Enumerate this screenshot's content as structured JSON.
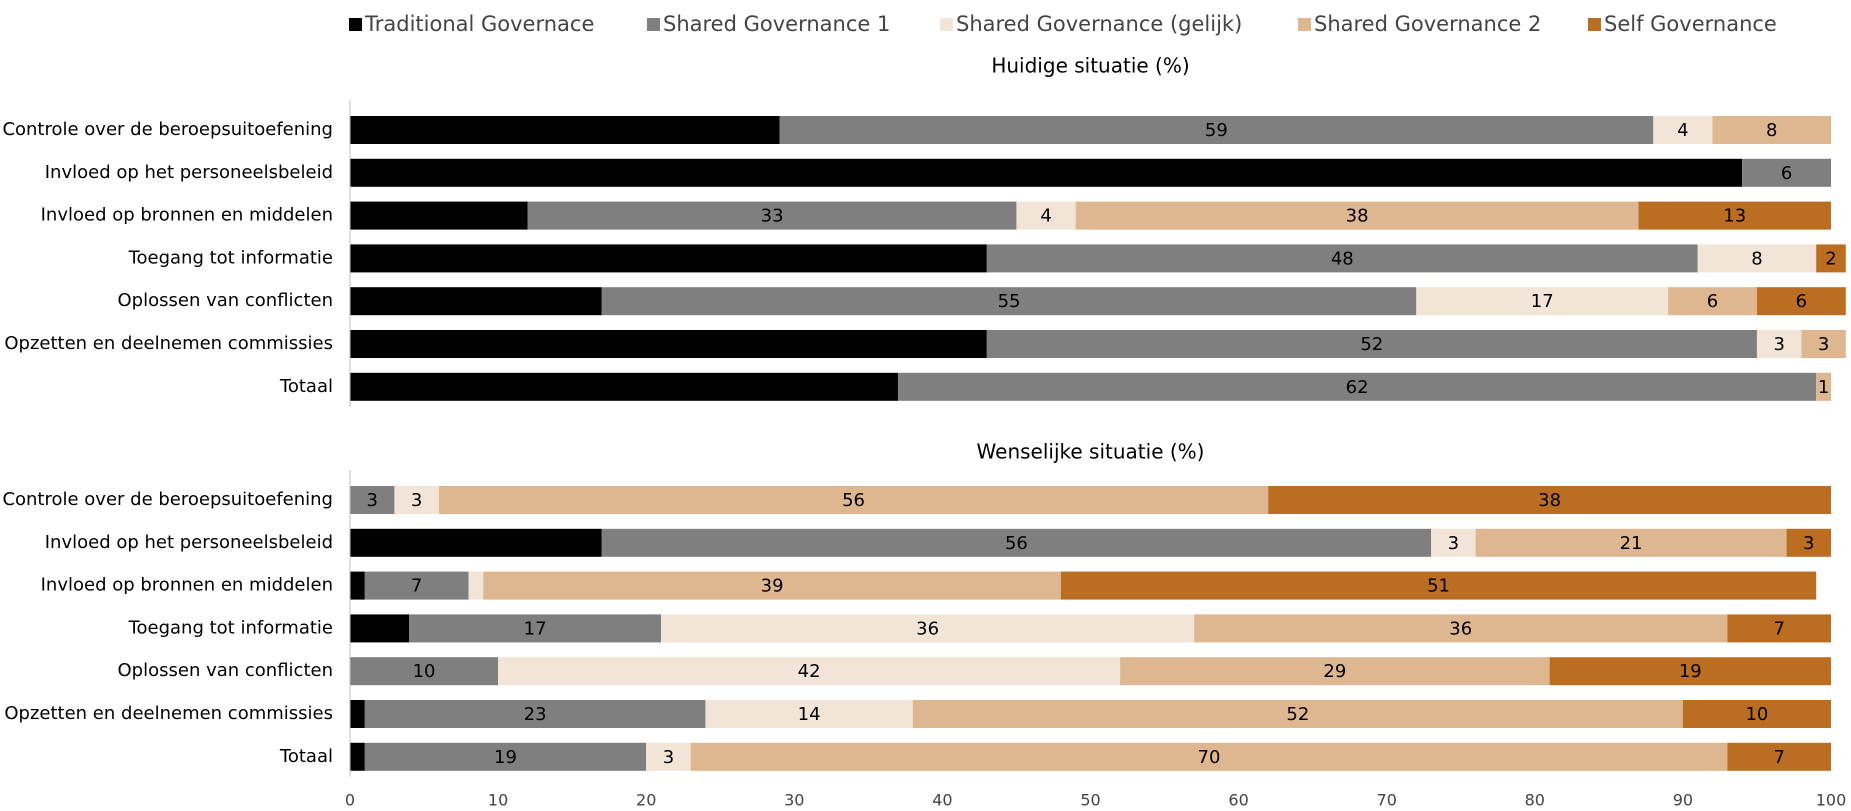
{
  "chart_data": [
    {
      "type": "bar",
      "orientation": "horizontal",
      "stacked": true,
      "title": "Huidige situatie (%)",
      "categories": [
        "Controle over de beroepsuitoefening",
        "Invloed op het personeelsbeleid",
        "Invloed op bronnen en middelen",
        "Toegang tot informatie",
        "Oplossen van conflicten",
        "Opzetten en deelnemen commissies",
        "Totaal"
      ],
      "series": [
        {
          "name": "Traditional Governace",
          "color": "#000000",
          "label_color": "#ffffff",
          "values": [
            29,
            94,
            12,
            43,
            17,
            43,
            37
          ]
        },
        {
          "name": "Shared Governance 1",
          "color": "#7f7f7f",
          "label_color": "#ffffff",
          "values": [
            59,
            6,
            33,
            48,
            55,
            52,
            62
          ]
        },
        {
          "name": "Shared Governance (gelijk)",
          "color": "#f2e4d7",
          "label_color": "#000000",
          "values": [
            4,
            0,
            4,
            8,
            17,
            3,
            0
          ]
        },
        {
          "name": "Shared Governance 2",
          "color": "#deb68f",
          "label_color": "#ffffff",
          "values": [
            8,
            0,
            38,
            0,
            6,
            3,
            1
          ]
        },
        {
          "name": "Self Governance",
          "color": "#bb6e22",
          "label_color": "#ffffff",
          "values": [
            0,
            0,
            13,
            2,
            6,
            0,
            0
          ]
        }
      ],
      "xlim": [
        0,
        100
      ]
    },
    {
      "type": "bar",
      "orientation": "horizontal",
      "stacked": true,
      "title": "Wenselijke situatie (%)",
      "categories": [
        "Controle over de beroepsuitoefening",
        "Invloed op het personeelsbeleid",
        "Invloed op bronnen en middelen",
        "Toegang tot informatie",
        "Oplossen van conflicten",
        "Opzetten en deelnemen commissies",
        "Totaal"
      ],
      "series": [
        {
          "name": "Traditional Governace",
          "color": "#000000",
          "label_color": "#ffffff",
          "values": [
            0,
            17,
            1,
            4,
            0,
            1,
            1
          ]
        },
        {
          "name": "Shared Governance 1",
          "color": "#7f7f7f",
          "label_color": "#ffffff",
          "values": [
            3,
            56,
            7,
            17,
            10,
            23,
            19
          ]
        },
        {
          "name": "Shared Governance (gelijk)",
          "color": "#f2e4d7",
          "label_color": "#000000",
          "values": [
            3,
            3,
            1,
            36,
            42,
            14,
            3
          ],
          "value_labels": [
            "3",
            "3",
            null,
            "36",
            "42",
            "14",
            "3"
          ]
        },
        {
          "name": "Shared Governance 2",
          "color": "#deb68f",
          "label_color": "#ffffff",
          "values": [
            56,
            21,
            39,
            36,
            29,
            52,
            70
          ]
        },
        {
          "name": "Self Governance",
          "color": "#bb6e22",
          "label_color": "#ffffff",
          "values": [
            38,
            3,
            51,
            7,
            19,
            10,
            7
          ]
        }
      ],
      "xlim": [
        0,
        100
      ],
      "xticks": [
        0,
        10,
        20,
        30,
        40,
        50,
        60,
        70,
        80,
        90,
        100
      ]
    }
  ]
}
